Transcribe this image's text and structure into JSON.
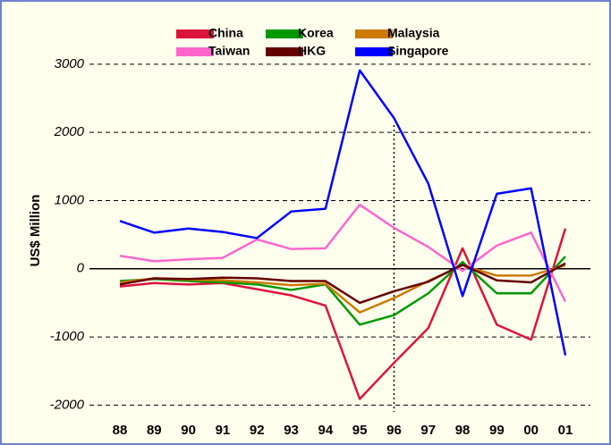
{
  "chart_data": {
    "type": "line",
    "y_label": "US$ Million",
    "categories": [
      "88",
      "89",
      "90",
      "91",
      "92",
      "93",
      "94",
      "95",
      "96",
      "97",
      "98",
      "99",
      "00",
      "01"
    ],
    "series": [
      {
        "name": "China",
        "color": "#dc143c",
        "values": [
          -260,
          -210,
          -230,
          -210,
          -300,
          -390,
          -540,
          -1910,
          -1380,
          -870,
          300,
          -820,
          -1040,
          590
        ]
      },
      {
        "name": "Korea",
        "color": "#009900",
        "values": [
          -180,
          -150,
          -180,
          -200,
          -230,
          -310,
          -230,
          -820,
          -680,
          -360,
          100,
          -360,
          -360,
          180
        ]
      },
      {
        "name": "Malaysia",
        "color": "#cc7a00",
        "values": [
          -200,
          -140,
          -160,
          -170,
          -200,
          -240,
          -220,
          -640,
          -430,
          -180,
          50,
          -100,
          -100,
          50
        ]
      },
      {
        "name": "Taiwan",
        "color": "#ff66cc",
        "values": [
          190,
          110,
          140,
          160,
          430,
          290,
          300,
          940,
          600,
          320,
          -30,
          340,
          530,
          -480
        ]
      },
      {
        "name": "HKG",
        "color": "#660000",
        "values": [
          -230,
          -140,
          -150,
          -130,
          -140,
          -180,
          -180,
          -500,
          -330,
          -190,
          60,
          -170,
          -200,
          80
        ]
      },
      {
        "name": "Singapore",
        "color": "#0000ff",
        "values": [
          700,
          530,
          590,
          540,
          450,
          840,
          880,
          2910,
          2210,
          1250,
          -400,
          1100,
          1180,
          -1270
        ]
      }
    ],
    "ylim": [
      -2100,
      3300
    ],
    "yticks": [
      -2000,
      -1000,
      0,
      1000,
      2000,
      3000
    ],
    "grid": true,
    "vline_category": "96"
  }
}
